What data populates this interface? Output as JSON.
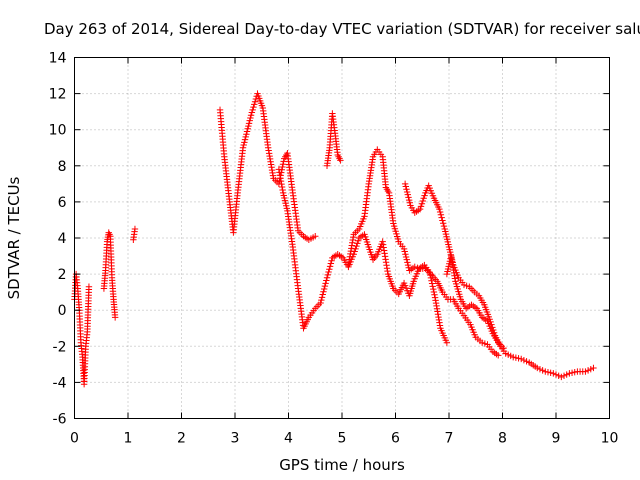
{
  "chart_data": {
    "type": "scatter",
    "title": "Day 263 of 2014, Sidereal Day-to-day VTEC variation (SDTVAR) for receiver salu",
    "xlabel": "GPS time / hours",
    "ylabel": "SDTVAR / TECUs",
    "xlim": [
      0,
      10
    ],
    "ylim": [
      -6,
      14
    ],
    "xticks": [
      0,
      1,
      2,
      3,
      4,
      5,
      6,
      7,
      8,
      9,
      10
    ],
    "yticks": [
      -6,
      -4,
      -2,
      0,
      2,
      4,
      6,
      8,
      10,
      12,
      14
    ],
    "marker": "+",
    "color": "#ff0000",
    "grid": true,
    "series": [
      {
        "name": "SDTVAR",
        "segments": [
          [
            [
              0.0,
              0.6
            ],
            [
              0.03,
              2.0
            ],
            [
              0.06,
              1.2
            ],
            [
              0.09,
              0.0
            ],
            [
              0.12,
              -1.8
            ],
            [
              0.15,
              -2.6
            ],
            [
              0.18,
              -4.1
            ],
            [
              0.21,
              -2.0
            ],
            [
              0.24,
              -1.2
            ],
            [
              0.27,
              1.3
            ]
          ],
          [
            [
              0.55,
              1.2
            ],
            [
              0.58,
              2.2
            ],
            [
              0.61,
              3.8
            ],
            [
              0.64,
              4.3
            ],
            [
              0.67,
              4.1
            ],
            [
              0.7,
              1.8
            ],
            [
              0.73,
              0.6
            ],
            [
              0.76,
              -0.4
            ]
          ],
          [
            [
              1.1,
              3.9
            ],
            [
              1.13,
              4.5
            ]
          ],
          [
            [
              2.72,
              11.1
            ],
            [
              2.8,
              8.5
            ],
            [
              2.9,
              6.0
            ],
            [
              2.97,
              4.3
            ],
            [
              3.05,
              6.5
            ],
            [
              3.15,
              9.0
            ],
            [
              3.3,
              10.8
            ],
            [
              3.42,
              12.0
            ],
            [
              3.52,
              11.2
            ],
            [
              3.62,
              9.0
            ],
            [
              3.72,
              7.3
            ],
            [
              3.82,
              7.0
            ],
            [
              3.92,
              8.4
            ],
            [
              3.98,
              8.7
            ],
            [
              4.08,
              6.5
            ],
            [
              4.18,
              4.4
            ],
            [
              4.28,
              4.1
            ],
            [
              4.38,
              3.9
            ],
            [
              4.5,
              4.1
            ]
          ],
          [
            [
              3.82,
              7.8
            ],
            [
              3.9,
              6.5
            ],
            [
              3.98,
              5.5
            ],
            [
              4.08,
              3.5
            ],
            [
              4.18,
              1.2
            ],
            [
              4.28,
              -1.0
            ],
            [
              4.38,
              -0.4
            ],
            [
              4.5,
              0.1
            ],
            [
              4.6,
              0.4
            ],
            [
              4.72,
              1.8
            ],
            [
              4.82,
              2.9
            ],
            [
              4.92,
              3.1
            ],
            [
              5.02,
              2.9
            ],
            [
              5.12,
              2.4
            ],
            [
              5.22,
              3.1
            ],
            [
              5.32,
              4.0
            ],
            [
              5.42,
              4.2
            ],
            [
              5.5,
              3.5
            ],
            [
              5.58,
              2.8
            ],
            [
              5.66,
              3.1
            ],
            [
              5.76,
              3.8
            ],
            [
              5.86,
              2.0
            ],
            [
              5.96,
              1.2
            ],
            [
              6.06,
              0.9
            ],
            [
              6.16,
              1.5
            ],
            [
              6.26,
              0.8
            ],
            [
              6.34,
              1.6
            ],
            [
              6.44,
              2.3
            ],
            [
              6.54,
              2.5
            ],
            [
              6.64,
              2.1
            ],
            [
              6.74,
              0.7
            ],
            [
              6.84,
              -1.0
            ],
            [
              6.96,
              -1.8
            ]
          ],
          [
            [
              4.72,
              8.0
            ],
            [
              4.77,
              9.0
            ],
            [
              4.82,
              10.9
            ],
            [
              4.87,
              9.8
            ],
            [
              4.92,
              8.6
            ],
            [
              4.97,
              8.3
            ]
          ],
          [
            [
              5.12,
              2.5
            ],
            [
              5.22,
              4.2
            ],
            [
              5.32,
              4.5
            ],
            [
              5.42,
              5.2
            ],
            [
              5.5,
              7.0
            ],
            [
              5.58,
              8.5
            ],
            [
              5.66,
              8.9
            ],
            [
              5.76,
              8.5
            ],
            [
              5.82,
              6.8
            ],
            [
              5.88,
              6.5
            ],
            [
              5.96,
              4.8
            ],
            [
              6.06,
              3.8
            ],
            [
              6.16,
              3.4
            ],
            [
              6.26,
              2.2
            ],
            [
              6.36,
              2.4
            ],
            [
              6.46,
              2.3
            ],
            [
              6.56,
              2.3
            ],
            [
              6.66,
              2.0
            ],
            [
              6.78,
              1.6
            ],
            [
              6.88,
              1.0
            ],
            [
              6.98,
              0.6
            ],
            [
              7.08,
              0.6
            ],
            [
              7.18,
              0.1
            ],
            [
              7.28,
              -0.3
            ],
            [
              7.4,
              -0.8
            ],
            [
              7.5,
              -1.5
            ],
            [
              7.62,
              -1.8
            ],
            [
              7.72,
              -1.9
            ],
            [
              7.82,
              -2.3
            ],
            [
              7.92,
              -2.5
            ]
          ],
          [
            [
              6.18,
              7.0
            ],
            [
              6.28,
              5.8
            ],
            [
              6.36,
              5.4
            ],
            [
              6.46,
              5.6
            ],
            [
              6.56,
              6.5
            ],
            [
              6.62,
              6.9
            ],
            [
              6.72,
              6.2
            ],
            [
              6.82,
              5.6
            ],
            [
              6.92,
              4.5
            ],
            [
              7.0,
              3.5
            ],
            [
              7.08,
              2.5
            ],
            [
              7.18,
              1.8
            ],
            [
              7.28,
              1.4
            ],
            [
              7.38,
              1.3
            ],
            [
              7.48,
              1.0
            ],
            [
              7.56,
              0.8
            ],
            [
              7.66,
              0.3
            ],
            [
              7.76,
              -0.5
            ],
            [
              7.86,
              -1.4
            ],
            [
              7.96,
              -2.0
            ],
            [
              8.06,
              -2.4
            ],
            [
              8.2,
              -2.6
            ],
            [
              8.35,
              -2.7
            ],
            [
              8.5,
              -2.9
            ],
            [
              8.65,
              -3.2
            ],
            [
              8.8,
              -3.4
            ],
            [
              8.95,
              -3.5
            ],
            [
              9.1,
              -3.7
            ],
            [
              9.25,
              -3.5
            ],
            [
              9.4,
              -3.4
            ],
            [
              9.55,
              -3.4
            ],
            [
              9.7,
              -3.2
            ]
          ],
          [
            [
              6.96,
              2.0
            ],
            [
              7.04,
              3.0
            ],
            [
              7.12,
              1.6
            ],
            [
              7.22,
              0.6
            ],
            [
              7.32,
              0.1
            ],
            [
              7.42,
              0.3
            ],
            [
              7.52,
              0.1
            ],
            [
              7.62,
              -0.4
            ],
            [
              7.72,
              -0.6
            ],
            [
              7.82,
              -1.3
            ],
            [
              7.92,
              -1.8
            ],
            [
              8.02,
              -2.1
            ]
          ]
        ]
      }
    ]
  }
}
